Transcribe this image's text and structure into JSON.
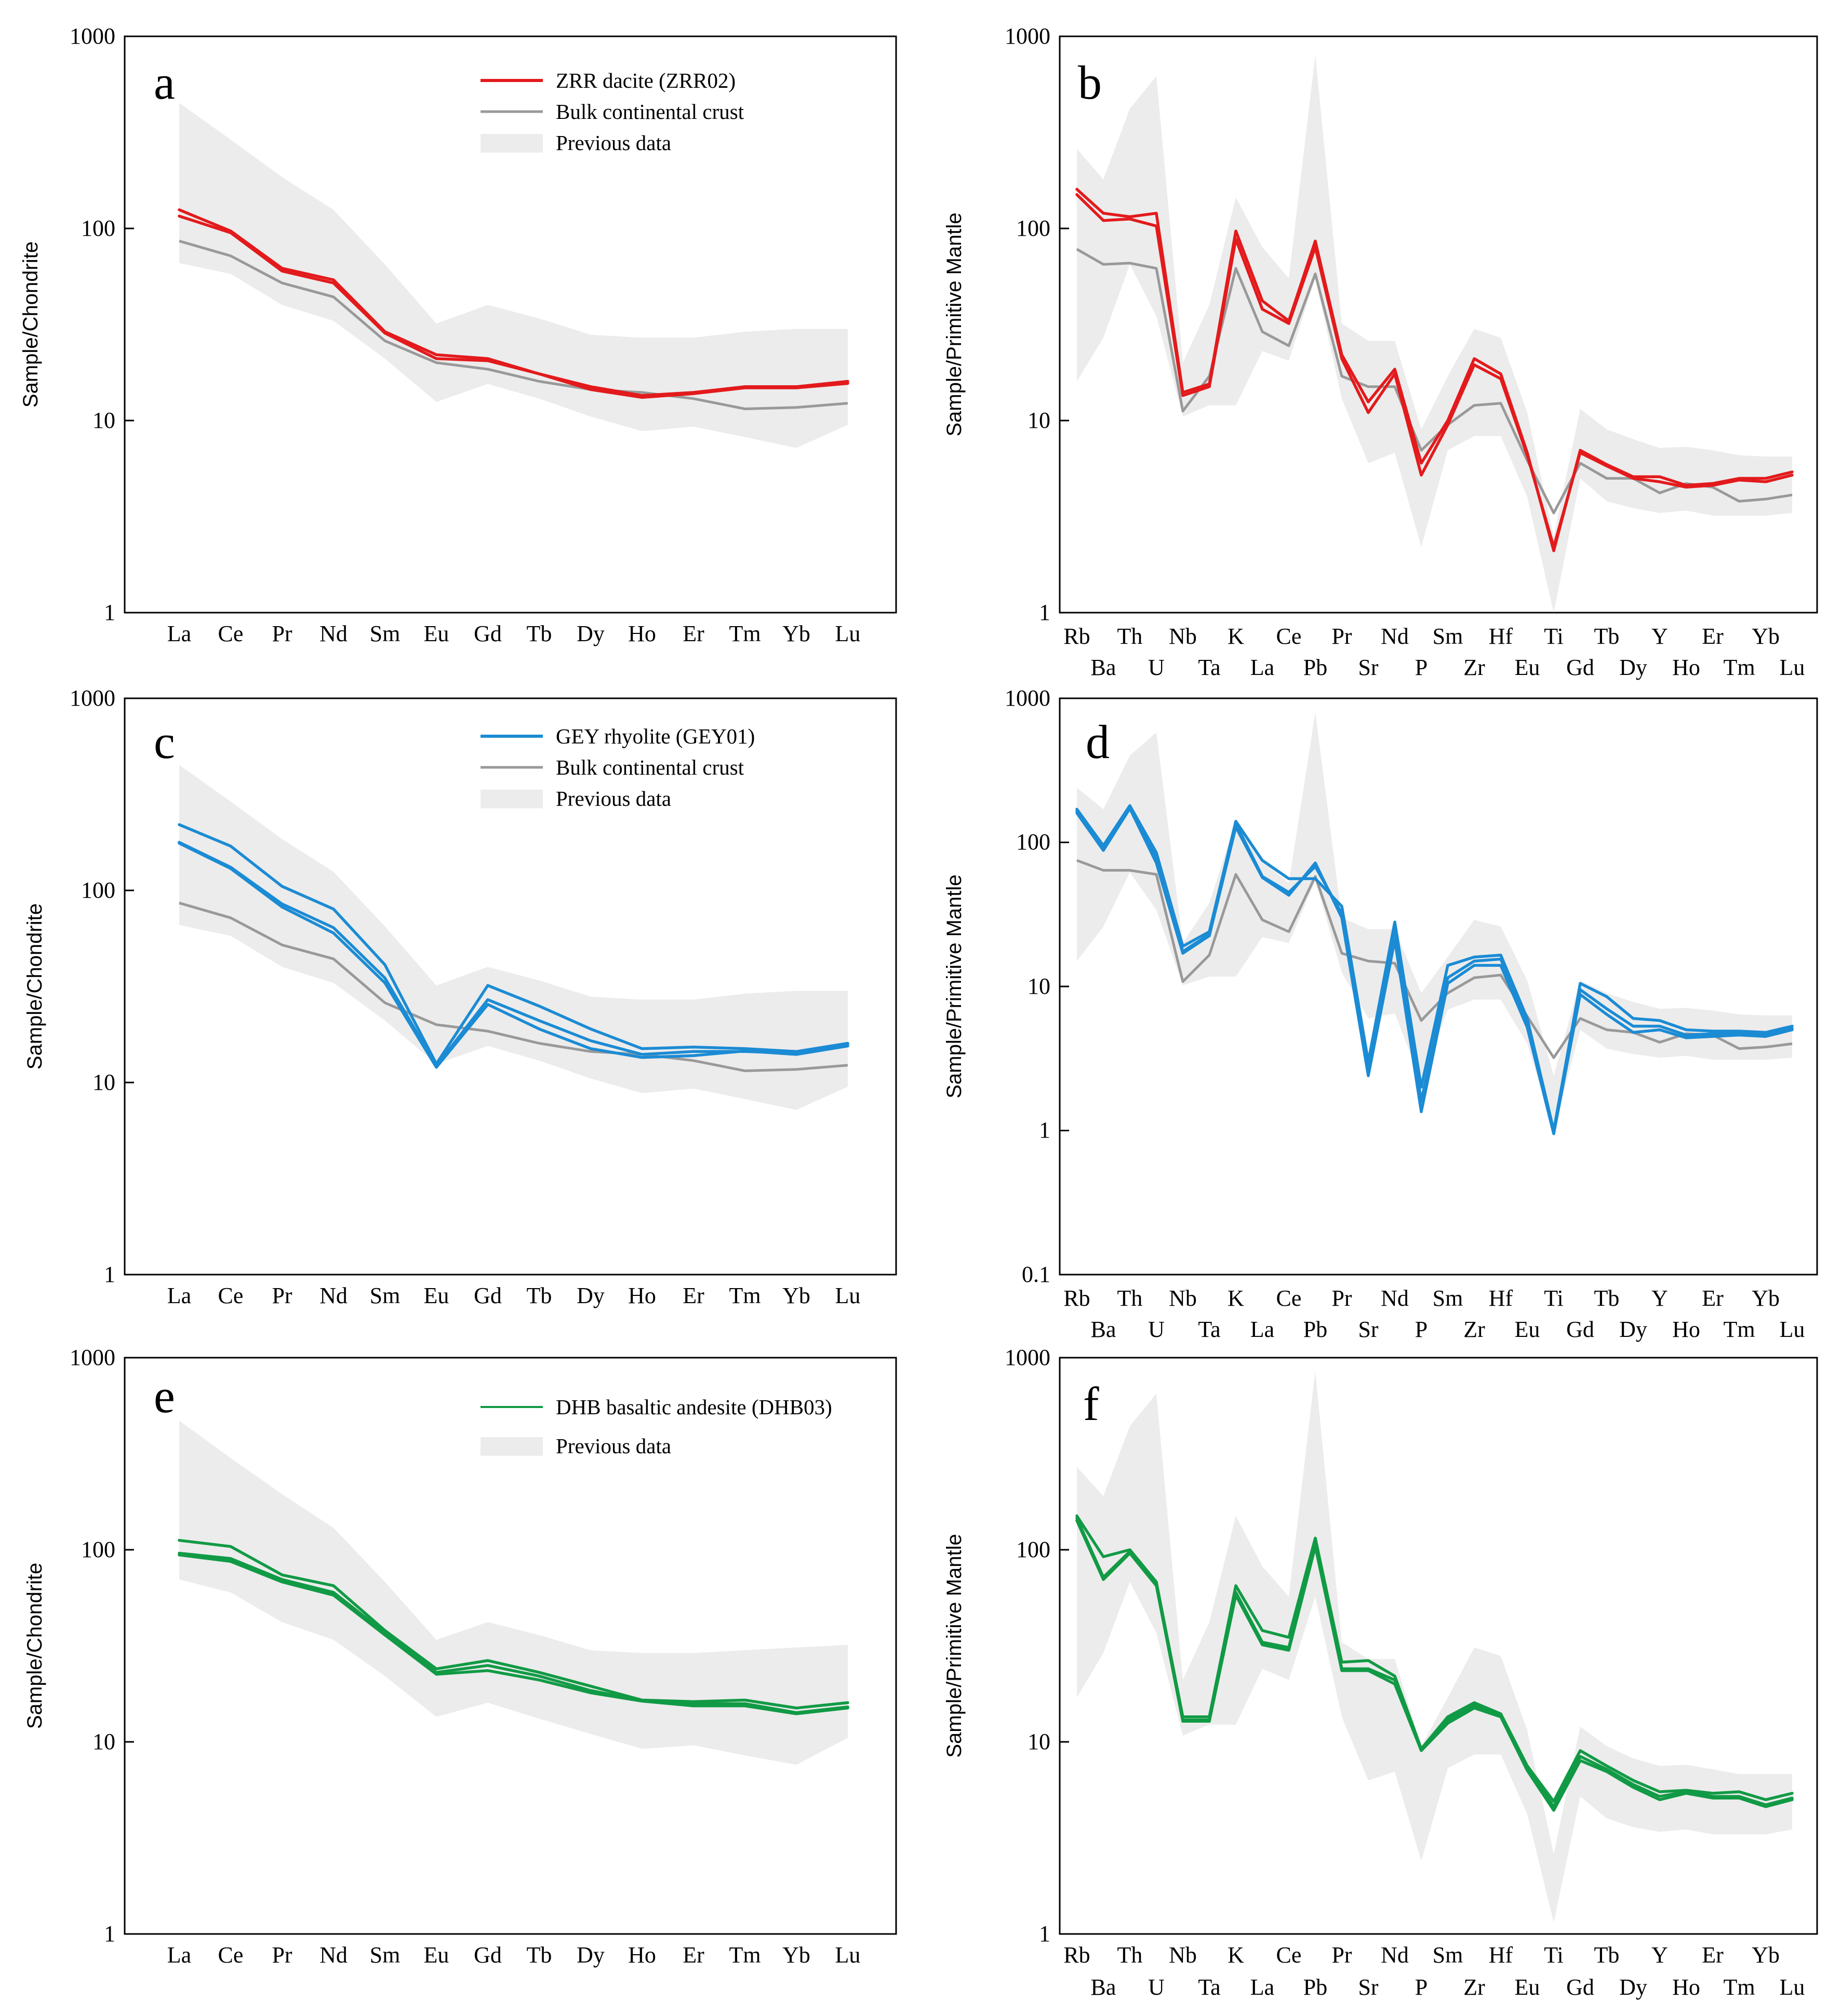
{
  "figure": {
    "colors": {
      "red": "#e31a1c",
      "blue": "#1b8bd4",
      "green": "#119a45",
      "gray": "#999999",
      "envelope": "#ececec"
    }
  },
  "chart_data": [
    {
      "panel": "a",
      "type": "line",
      "yscale": "log",
      "ylim": [
        1,
        1000
      ],
      "ylabel": "Sample/Chondrite",
      "yticks": [
        "1",
        "10",
        "100",
        "1000"
      ],
      "categories": [
        "La",
        "Ce",
        "Pr",
        "Nd",
        "Sm",
        "Eu",
        "Gd",
        "Tb",
        "Dy",
        "Ho",
        "Er",
        "Tm",
        "Yb",
        "Lu"
      ],
      "legend": [
        "ZRR dacite (ZRR02)",
        "Bulk continental crust",
        "Previous data"
      ],
      "series": [
        {
          "name": "ZRR dacite (ZRR02)",
          "color": "red",
          "values": [
            125,
            97,
            62,
            54,
            29,
            22,
            21,
            17.5,
            15,
            13.5,
            14,
            15,
            15,
            16
          ]
        },
        {
          "name": "ZRR dacite (ZRR02)",
          "color": "red",
          "values": [
            116,
            95,
            60,
            52,
            28.5,
            21,
            20.5,
            17.5,
            14.5,
            13.2,
            13.8,
            14.8,
            14.8,
            15.6
          ]
        },
        {
          "name": "Bulk continental crust",
          "color": "gray",
          "values": [
            86,
            72,
            52,
            44,
            26,
            20,
            18.5,
            16,
            14.5,
            14,
            13,
            11.5,
            11.7,
            12.3
          ]
        }
      ],
      "envelope": {
        "upper": [
          450,
          290,
          185,
          125,
          65,
          32,
          40,
          34,
          28,
          27,
          27,
          29,
          30,
          30
        ],
        "lower": [
          66,
          58,
          40,
          33,
          21,
          12.5,
          15.5,
          13,
          10.5,
          8.8,
          9.3,
          8.2,
          7.2,
          9.5
        ]
      }
    },
    {
      "panel": "b",
      "type": "line",
      "yscale": "log",
      "ylim": [
        1,
        1000
      ],
      "ylabel": "Sample/Primitive Mantle",
      "yticks": [
        "1",
        "10",
        "100",
        "1000"
      ],
      "categories": [
        "Rb",
        "Ba",
        "Th",
        "U",
        "Nb",
        "Ta",
        "K",
        "La",
        "Ce",
        "Pb",
        "Pr",
        "Sr",
        "Nd",
        "P",
        "Sm",
        "Zr",
        "Hf",
        "Eu",
        "Ti",
        "Gd",
        "Tb",
        "Dy",
        "Y",
        "Ho",
        "Er",
        "Tm",
        "Yb",
        "Lu"
      ],
      "series": [
        {
          "name": "ZRR dacite",
          "color": "red",
          "values": [
            160,
            120,
            115,
            120,
            14,
            15.5,
            97,
            42,
            33,
            86,
            22,
            12.5,
            18.5,
            6,
            10,
            21,
            17.5,
            6.8,
            2.1,
            7,
            5.9,
            5.1,
            5.1,
            4.6,
            4.7,
            5,
            5,
            5.4
          ]
        },
        {
          "name": "ZRR dacite",
          "color": "red",
          "values": [
            150,
            110,
            112,
            103,
            13.5,
            15,
            88,
            38,
            32,
            80,
            21,
            11,
            17.5,
            5.2,
            9.5,
            19.5,
            16.5,
            6.6,
            2.2,
            6.8,
            5.8,
            5,
            4.8,
            4.5,
            4.6,
            4.9,
            4.8,
            5.2
          ]
        },
        {
          "name": "Bulk continental crust",
          "color": "gray",
          "values": [
            78,
            65,
            66,
            62,
            11.2,
            17,
            62,
            29,
            24.5,
            58,
            17,
            15,
            15,
            7,
            9.5,
            12,
            12.3,
            6.2,
            3.3,
            6,
            5,
            5,
            4.2,
            4.7,
            4.5,
            3.8,
            3.9,
            4.1
          ]
        }
      ],
      "envelope": {
        "upper": [
          260,
          180,
          420,
          620,
          20,
          40,
          145,
          80,
          55,
          800,
          32,
          26,
          26,
          9,
          17,
          30,
          27,
          11,
          2.5,
          11.5,
          9,
          8,
          7.2,
          7.3,
          7,
          6.6,
          6.5,
          6.5
        ],
        "lower": [
          16,
          27,
          65,
          35,
          10.5,
          12,
          12,
          23,
          20.5,
          55,
          13,
          6,
          6.8,
          2.2,
          7,
          8.3,
          8.3,
          4,
          1.0,
          5,
          3.8,
          3.5,
          3.3,
          3.4,
          3.2,
          3.2,
          3.2,
          3.3
        ]
      }
    },
    {
      "panel": "c",
      "type": "line",
      "yscale": "log",
      "ylim": [
        1,
        1000
      ],
      "ylabel": "Sample/Chondrite",
      "yticks": [
        "1",
        "10",
        "100",
        "1000"
      ],
      "categories": [
        "La",
        "Ce",
        "Pr",
        "Nd",
        "Sm",
        "Eu",
        "Gd",
        "Tb",
        "Dy",
        "Ho",
        "Er",
        "Tm",
        "Yb",
        "Lu"
      ],
      "legend": [
        "GEY rhyolite (GEY01)",
        "Bulk continental crust",
        "Previous data"
      ],
      "series": [
        {
          "name": "GEY rhyolite (GEY01)",
          "color": "blue",
          "values": [
            220,
            170,
            105,
            80,
            41,
            12.5,
            32,
            25,
            19,
            15,
            15.3,
            15,
            14.5,
            16
          ]
        },
        {
          "name": "GEY rhyolite (GEY01)",
          "color": "blue",
          "values": [
            178,
            132,
            85,
            64,
            35,
            12.2,
            27,
            21,
            16.5,
            14,
            14.5,
            14.5,
            14.2,
            15.7
          ]
        },
        {
          "name": "GEY rhyolite (GEY01)",
          "color": "blue",
          "values": [
            176,
            130,
            82,
            60,
            33,
            12,
            25.5,
            19,
            15,
            13.5,
            13.8,
            14.6,
            14,
            15.5
          ]
        },
        {
          "name": "Bulk continental crust",
          "color": "gray",
          "values": [
            86,
            72,
            52,
            44,
            26,
            20,
            18.5,
            16,
            14.5,
            14,
            13,
            11.5,
            11.7,
            12.3
          ]
        }
      ],
      "envelope": {
        "upper": [
          450,
          290,
          185,
          125,
          65,
          32,
          40,
          34,
          28,
          27,
          27,
          29,
          30,
          30
        ],
        "lower": [
          66,
          58,
          40,
          33,
          21,
          12.5,
          15.5,
          13,
          10.5,
          8.8,
          9.3,
          8.2,
          7.2,
          9.5
        ]
      }
    },
    {
      "panel": "d",
      "type": "line",
      "yscale": "log",
      "ylim": [
        0.1,
        1000
      ],
      "ylabel": "Sample/Primitive Mantle",
      "yticks": [
        "0.1",
        "1",
        "10",
        "100",
        "1000"
      ],
      "categories": [
        "Rb",
        "Ba",
        "Th",
        "U",
        "Nb",
        "Ta",
        "K",
        "La",
        "Ce",
        "Pb",
        "Pr",
        "Sr",
        "Nd",
        "P",
        "Sm",
        "Zr",
        "Hf",
        "Eu",
        "Ti",
        "Gd",
        "Tb",
        "Dy",
        "Y",
        "Ho",
        "Er",
        "Tm",
        "Yb",
        "Lu"
      ],
      "series": [
        {
          "name": "GEY rhyolite",
          "color": "blue",
          "values": [
            170,
            95,
            180,
            85,
            19,
            24,
            140,
            75,
            56,
            56,
            36,
            3,
            28,
            2,
            14,
            16,
            16.5,
            6,
            1,
            10.5,
            8.5,
            6,
            5.8,
            5,
            4.9,
            4.9,
            4.8,
            5.3
          ]
        },
        {
          "name": "GEY rhyolite",
          "color": "blue",
          "values": [
            165,
            90,
            175,
            78,
            17.5,
            23,
            135,
            58,
            45,
            68,
            32,
            2.6,
            25,
            1.6,
            11.5,
            15,
            15.5,
            5.5,
            0.98,
            9.5,
            7,
            5.3,
            5.3,
            4.6,
            4.7,
            4.7,
            4.6,
            5.1
          ]
        },
        {
          "name": "GEY rhyolite",
          "color": "blue",
          "values": [
            160,
            88,
            172,
            72,
            17,
            22.5,
            128,
            57,
            43,
            72,
            30,
            2.4,
            21,
            1.35,
            10.5,
            14,
            14,
            5.2,
            0.95,
            8.8,
            6.4,
            4.8,
            5,
            4.4,
            4.5,
            4.6,
            4.5,
            5
          ]
        },
        {
          "name": "Bulk continental crust",
          "color": "gray",
          "values": [
            75,
            64,
            64,
            60,
            10.8,
            16.5,
            60,
            29,
            24,
            58,
            17,
            15,
            14.5,
            5.8,
            9,
            11.5,
            12,
            6.2,
            3.2,
            6,
            5,
            4.8,
            4.1,
            4.7,
            4.6,
            3.7,
            3.8,
            4
          ]
        }
      ],
      "envelope": {
        "upper": [
          240,
          170,
          400,
          580,
          20,
          38,
          140,
          75,
          52,
          800,
          30,
          25,
          25,
          9,
          16,
          29,
          26,
          11,
          2.4,
          11,
          9,
          7.8,
          7,
          7.1,
          6.8,
          6.4,
          6.3,
          6.3
        ],
        "lower": [
          15,
          26,
          62,
          34,
          10.2,
          11.7,
          11.7,
          22,
          20,
          54,
          12.5,
          6,
          6.5,
          2.2,
          6.9,
          8.1,
          8.1,
          4,
          1.0,
          5,
          3.7,
          3.4,
          3.2,
          3.3,
          3.1,
          3.1,
          3.1,
          3.2
        ]
      }
    },
    {
      "panel": "e",
      "type": "line",
      "yscale": "log",
      "ylim": [
        1,
        1000
      ],
      "ylabel": "Sample/Chondrite",
      "yticks": [
        "1",
        "10",
        "100",
        "1000"
      ],
      "categories": [
        "La",
        "Ce",
        "Pr",
        "Nd",
        "Sm",
        "Eu",
        "Gd",
        "Tb",
        "Dy",
        "Ho",
        "Er",
        "Tm",
        "Yb",
        "Lu"
      ],
      "legend": [
        "DHB basaltic andesite (DHB03)",
        "Previous data"
      ],
      "series": [
        {
          "name": "DHB basaltic andesite (DHB03)",
          "color": "green",
          "values": [
            112,
            104,
            74,
            65,
            38,
            24,
            26.5,
            23,
            19.5,
            16.5,
            16.2,
            16.5,
            15,
            16
          ]
        },
        {
          "name": "DHB basaltic andesite (DHB03)",
          "color": "green",
          "values": [
            96,
            90,
            70,
            60,
            37,
            23,
            25,
            22,
            18.5,
            16.4,
            15.8,
            15.8,
            14.2,
            15.2
          ]
        },
        {
          "name": "DHB basaltic andesite (DHB03)",
          "color": "green",
          "values": [
            94,
            87,
            68,
            58,
            36,
            22.5,
            23.5,
            21,
            18,
            16.3,
            15.4,
            15.4,
            14,
            15
          ]
        }
      ],
      "envelope": {
        "upper": [
          470,
          300,
          195,
          130,
          68,
          34,
          42,
          36,
          30,
          29,
          29,
          30,
          31,
          32
        ],
        "lower": [
          70,
          60,
          42,
          34,
          22,
          13.5,
          16,
          13.2,
          11,
          9.2,
          9.6,
          8.5,
          7.6,
          10.5
        ]
      }
    },
    {
      "panel": "f",
      "type": "line",
      "yscale": "log",
      "ylim": [
        1,
        1000
      ],
      "ylabel": "Sample/Primitive Mantle",
      "yticks": [
        "1",
        "10",
        "100",
        "1000"
      ],
      "categories": [
        "Rb",
        "Ba",
        "Th",
        "U",
        "Nb",
        "Ta",
        "K",
        "La",
        "Ce",
        "Pb",
        "Pr",
        "Sr",
        "Nd",
        "P",
        "Sm",
        "Zr",
        "Hf",
        "Eu",
        "Ti",
        "Gd",
        "Tb",
        "Dy",
        "Y",
        "Ho",
        "Er",
        "Tm",
        "Yb",
        "Lu"
      ],
      "series": [
        {
          "name": "DHB basaltic andesite",
          "color": "green",
          "values": [
            150,
            92,
            100,
            68,
            13.5,
            13.5,
            65,
            38,
            35,
            115,
            26,
            26.5,
            22,
            9.2,
            13.5,
            16,
            14,
            7.5,
            4.9,
            9,
            7.5,
            6.3,
            5.5,
            5.6,
            5.4,
            5.5,
            5,
            5.4
          ]
        },
        {
          "name": "DHB basaltic andesite",
          "color": "green",
          "values": [
            146,
            72,
            98,
            66,
            13,
            13,
            60,
            33,
            31,
            108,
            24,
            24,
            21,
            9.1,
            13,
            15.5,
            13.8,
            7.3,
            4.6,
            8.4,
            7.2,
            6,
            5.2,
            5.5,
            5.2,
            5.2,
            4.7,
            5.1
          ]
        },
        {
          "name": "DHB basaltic andesite",
          "color": "green",
          "values": [
            142,
            70,
            96,
            65,
            12.8,
            12.8,
            58,
            32,
            30,
            104,
            23.5,
            23.5,
            20,
            9,
            12.5,
            15,
            13.5,
            7.1,
            4.4,
            8,
            7,
            5.8,
            5,
            5.4,
            5.1,
            5.1,
            4.6,
            5
          ]
        }
      ],
      "envelope": {
        "upper": [
          270,
          190,
          440,
          650,
          21,
          42,
          150,
          82,
          57,
          850,
          33,
          27,
          27,
          9.5,
          17,
          31,
          28,
          11.5,
          2.6,
          12,
          9.5,
          8.2,
          7.5,
          7.6,
          7.2,
          6.8,
          6.8,
          6.8
        ],
        "lower": [
          17,
          29,
          68,
          37,
          10.8,
          12.3,
          12.3,
          24,
          21,
          57,
          13.5,
          6.3,
          7,
          2.4,
          7.3,
          8.6,
          8.6,
          4.2,
          1.15,
          5.2,
          4,
          3.6,
          3.4,
          3.5,
          3.3,
          3.3,
          3.3,
          3.5
        ]
      }
    }
  ]
}
